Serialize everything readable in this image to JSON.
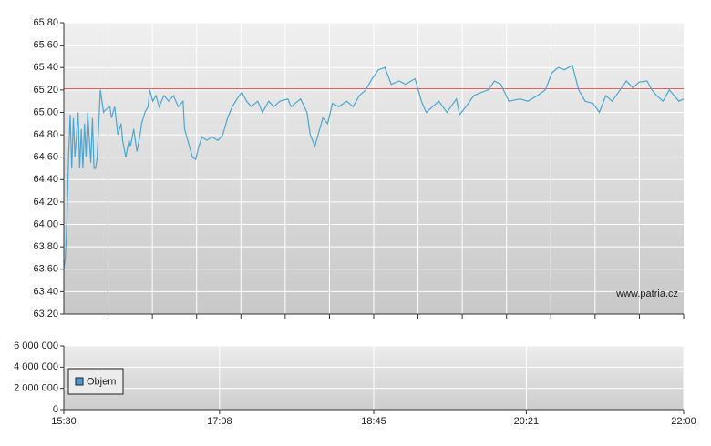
{
  "chart_data": [
    {
      "type": "line",
      "annotation": "www.patria.cz",
      "color": "#4aa6d4",
      "reference_line": {
        "value": 65.21,
        "color": "#d9534f"
      },
      "xlim": [
        "15:30",
        "22:00"
      ],
      "ylim": [
        63.2,
        65.8
      ],
      "yticks": [
        {
          "value": 63.2,
          "label": "63,20"
        },
        {
          "value": 63.4,
          "label": "63,40"
        },
        {
          "value": 63.6,
          "label": "63,60"
        },
        {
          "value": 63.8,
          "label": "63,80"
        },
        {
          "value": 64.0,
          "label": "64,00"
        },
        {
          "value": 64.2,
          "label": "64,20"
        },
        {
          "value": 64.4,
          "label": "64,40"
        },
        {
          "value": 64.6,
          "label": "64,60"
        },
        {
          "value": 64.8,
          "label": "64,80"
        },
        {
          "value": 65.0,
          "label": "65,00"
        },
        {
          "value": 65.2,
          "label": "65,20"
        },
        {
          "value": 65.4,
          "label": "65,40"
        },
        {
          "value": 65.6,
          "label": "65,60"
        },
        {
          "value": 65.8,
          "label": "65,80"
        }
      ],
      "grid": true,
      "x": [
        "15:30",
        "15:31",
        "15:32",
        "15:33",
        "15:34",
        "15:35",
        "15:36",
        "15:37",
        "15:39",
        "15:40",
        "15:41",
        "15:42",
        "15:43",
        "15:44",
        "15:45",
        "15:47",
        "15:48",
        "15:49",
        "15:50",
        "15:51",
        "15:53",
        "15:55",
        "15:56",
        "15:59",
        "16:00",
        "16:02",
        "16:04",
        "16:06",
        "16:07",
        "16:09",
        "16:11",
        "16:12",
        "16:14",
        "16:16",
        "16:18",
        "16:19",
        "16:21",
        "16:23",
        "16:24",
        "16:26",
        "16:28",
        "16:30",
        "16:33",
        "16:36",
        "16:39",
        "16:42",
        "16:45",
        "16:46",
        "16:49",
        "16:51",
        "16:53",
        "16:55",
        "16:57",
        "17:00",
        "17:03",
        "17:07",
        "17:10",
        "17:13",
        "17:16",
        "17:19",
        "17:22",
        "17:25",
        "17:28",
        "17:32",
        "17:35",
        "17:39",
        "17:42",
        "17:46",
        "17:51",
        "17:53",
        "17:59",
        "18:03",
        "18:05",
        "18:08",
        "18:11",
        "18:13",
        "18:16",
        "18:19",
        "18:23",
        "18:28",
        "18:32",
        "18:36",
        "18:40",
        "18:44",
        "18:48",
        "18:52",
        "18:56",
        "19:01",
        "19:05",
        "19:11",
        "19:15",
        "19:18",
        "19:22",
        "19:26",
        "19:31",
        "19:37",
        "19:39",
        "19:43",
        "19:48",
        "19:53",
        "19:57",
        "20:01",
        "20:05",
        "20:10",
        "20:17",
        "20:22",
        "20:28",
        "20:33",
        "20:37",
        "20:41",
        "20:45",
        "20:50",
        "20:54",
        "20:58",
        "21:03",
        "21:07",
        "21:11",
        "21:15",
        "21:20",
        "21:24",
        "21:28",
        "21:32",
        "21:37",
        "21:40",
        "21:43",
        "21:47",
        "21:51",
        "21:54",
        "21:57",
        "22:00"
      ],
      "values": [
        63.6,
        63.7,
        64.05,
        64.6,
        64.98,
        64.5,
        64.95,
        64.6,
        65.0,
        64.5,
        64.85,
        64.5,
        64.9,
        64.6,
        65.0,
        64.55,
        64.95,
        64.5,
        64.5,
        64.6,
        65.2,
        65.0,
        65.02,
        65.05,
        64.95,
        65.05,
        64.8,
        64.9,
        64.75,
        64.6,
        64.75,
        64.7,
        64.85,
        64.65,
        64.8,
        64.9,
        65.0,
        65.05,
        65.2,
        65.1,
        65.15,
        65.05,
        65.15,
        65.1,
        65.15,
        65.05,
        65.1,
        64.85,
        64.7,
        64.6,
        64.58,
        64.7,
        64.78,
        64.75,
        64.78,
        64.75,
        64.8,
        64.95,
        65.05,
        65.12,
        65.18,
        65.1,
        65.05,
        65.1,
        65.0,
        65.1,
        65.05,
        65.1,
        65.12,
        65.05,
        65.12,
        65.0,
        64.8,
        64.7,
        64.85,
        64.95,
        64.9,
        65.08,
        65.05,
        65.1,
        65.05,
        65.15,
        65.2,
        65.3,
        65.38,
        65.4,
        65.25,
        65.28,
        65.25,
        65.3,
        65.1,
        65.0,
        65.05,
        65.1,
        65.0,
        65.12,
        64.98,
        65.05,
        65.15,
        65.18,
        65.2,
        65.28,
        65.25,
        65.1,
        65.12,
        65.1,
        65.15,
        65.2,
        65.35,
        65.4,
        65.38,
        65.42,
        65.2,
        65.1,
        65.08,
        65.0,
        65.15,
        65.1,
        65.2,
        65.28,
        65.22,
        65.27,
        65.28,
        65.2,
        65.15,
        65.1,
        65.2,
        65.15,
        65.1,
        65.12
      ]
    },
    {
      "type": "bar",
      "xlim": [
        "15:30",
        "22:00"
      ],
      "xticks": [
        "15:30",
        "17:08",
        "18:45",
        "20:21",
        "22:00"
      ],
      "ylim": [
        0,
        6000000
      ],
      "yticks": [
        0,
        {
          "value": 2000000,
          "label": "2 000 000"
        },
        {
          "value": 4000000,
          "label": "4 000 000"
        },
        {
          "value": 6000000,
          "label": "6 000 000"
        }
      ],
      "grid": true,
      "legend": "left",
      "series": [
        {
          "name": "Objem",
          "color": "#4a9ad4",
          "values": []
        }
      ]
    }
  ]
}
